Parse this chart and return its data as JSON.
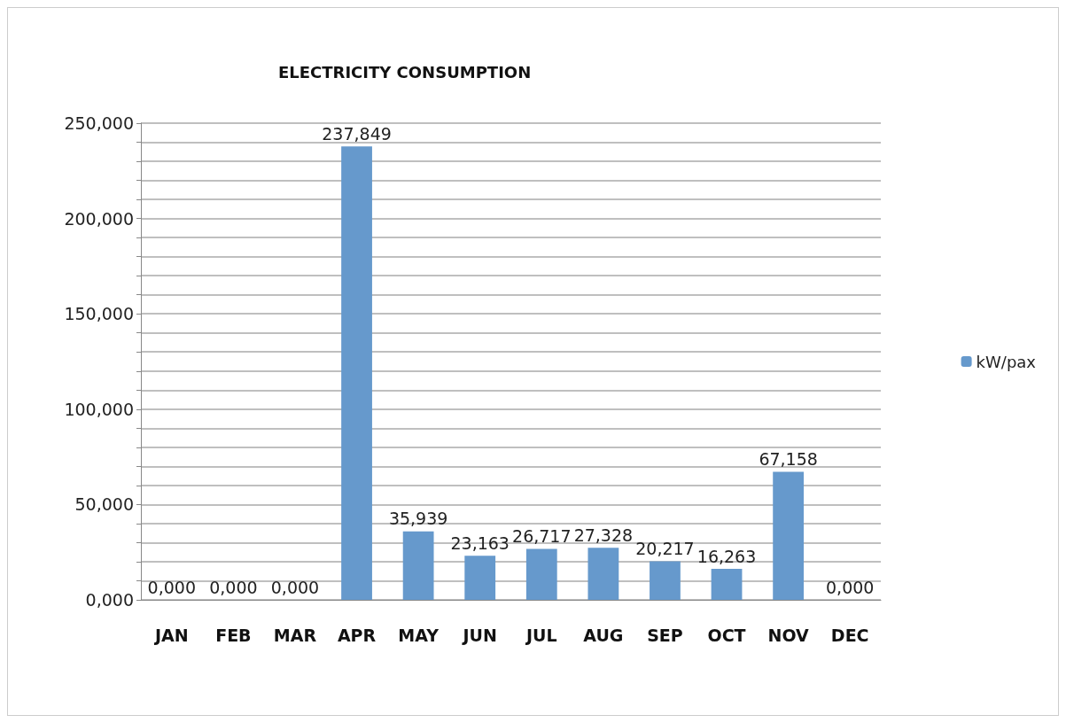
{
  "chart_data": {
    "type": "bar",
    "title": "ELECTRICITY CONSUMPTION",
    "categories": [
      "JAN",
      "FEB",
      "MAR",
      "APR",
      "MAY",
      "JUN",
      "JUL",
      "AUG",
      "SEP",
      "OCT",
      "NOV",
      "DEC"
    ],
    "series": [
      {
        "name": "kW/pax",
        "color": "#6699cc",
        "values": [
          0,
          0,
          0,
          237.849,
          35.939,
          23.163,
          26.717,
          27.328,
          20.217,
          16.263,
          67.158,
          0
        ],
        "value_labels": [
          "0,000",
          "0,000",
          "0,000",
          "237,849",
          "35,939",
          "23,163",
          "26,717",
          "27,328",
          "20,217",
          "16,263",
          "67,158",
          "0,000"
        ]
      }
    ],
    "ylim": [
      0,
      250
    ],
    "yticks": [
      {
        "value": 0,
        "label": "0,000"
      },
      {
        "value": 10,
        "label": null
      },
      {
        "value": 20,
        "label": null
      },
      {
        "value": 30,
        "label": null
      },
      {
        "value": 40,
        "label": null
      },
      {
        "value": 50,
        "label": "50,000"
      },
      {
        "value": 60,
        "label": null
      },
      {
        "value": 70,
        "label": null
      },
      {
        "value": 80,
        "label": null
      },
      {
        "value": 90,
        "label": null
      },
      {
        "value": 100,
        "label": "100,000"
      },
      {
        "value": 110,
        "label": null
      },
      {
        "value": 120,
        "label": null
      },
      {
        "value": 130,
        "label": null
      },
      {
        "value": 140,
        "label": null
      },
      {
        "value": 150,
        "label": "150,000"
      },
      {
        "value": 160,
        "label": null
      },
      {
        "value": 170,
        "label": null
      },
      {
        "value": 180,
        "label": null
      },
      {
        "value": 190,
        "label": null
      },
      {
        "value": 200,
        "label": "200,000"
      },
      {
        "value": 210,
        "label": null
      },
      {
        "value": 220,
        "label": null
      },
      {
        "value": 230,
        "label": null
      },
      {
        "value": 240,
        "label": null
      },
      {
        "value": 250,
        "label": "250,000"
      }
    ],
    "grid": "y",
    "legend": "right"
  }
}
